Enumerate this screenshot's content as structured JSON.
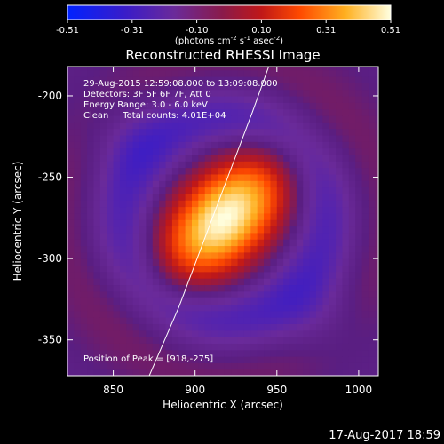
{
  "chart_data": {
    "type": "heatmap",
    "title": "Reconstructed RHESSI Image",
    "xlabel": "Heliocentric X (arcsec)",
    "ylabel": "Heliocentric Y (arcsec)",
    "xlim": [
      822,
      1012
    ],
    "ylim": [
      -372,
      -182
    ],
    "xticks": [
      850,
      900,
      950,
      1000
    ],
    "yticks": [
      -200,
      -250,
      -300,
      -350
    ],
    "colorbar": {
      "min": -0.51,
      "max": 0.51,
      "ticks": [
        "-0.51",
        "-0.31",
        "-0.10",
        "0.10",
        "0.31",
        "0.51"
      ],
      "unit_label": "(photons cm",
      "unit_sup1": "-2",
      "unit_s": " s",
      "unit_sup2": "-1",
      "unit_asec": " asec",
      "unit_sup3": "-2",
      "unit_close": ")"
    },
    "annotations": [
      "29-Aug-2015 12:59:08.000 to 13:09:08.000",
      "Detectors: 3F 5F 6F 7F, Att 0",
      "Energy Range: 3.0 - 6.0 keV",
      "Clean     Total counts: 4.01E+04"
    ],
    "peak_text": "Position of Peak = [918,-275]",
    "peak": [
      918,
      -275
    ],
    "peak_value": 0.51,
    "footer": "17-Aug-2017 18:59",
    "limb_curve": [
      [
        872,
        -372
      ],
      [
        890,
        -330
      ],
      [
        905,
        -290
      ],
      [
        920,
        -250
      ],
      [
        935,
        -210
      ],
      [
        945,
        -182
      ]
    ]
  }
}
